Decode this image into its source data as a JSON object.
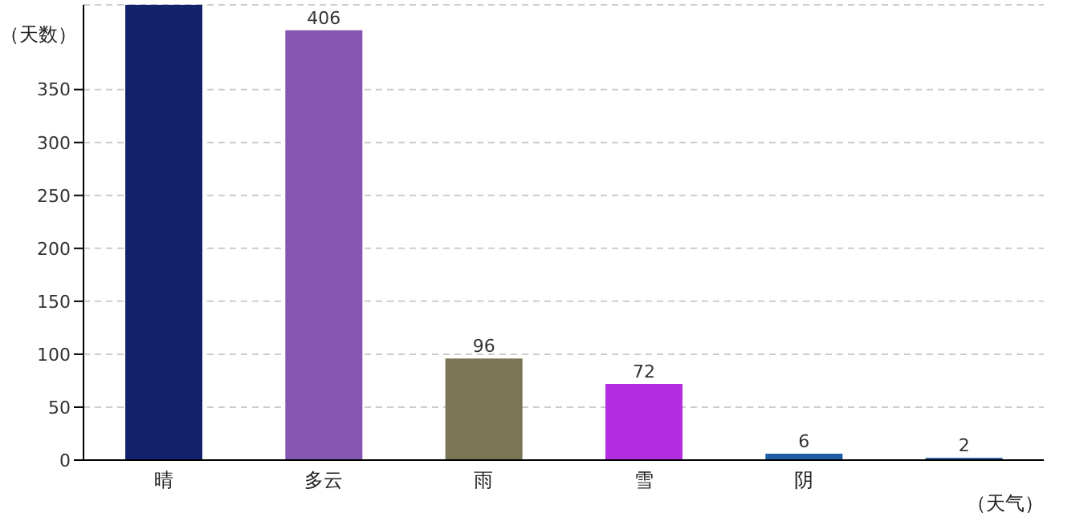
{
  "chart_data": {
    "type": "bar",
    "xlabel": "（天气）",
    "ylabel": "（天数）",
    "categories": [
      "晴",
      "多云",
      "雨",
      "雪",
      "阴",
      null
    ],
    "values": [
      430,
      406,
      96,
      72,
      6,
      2
    ],
    "colors": [
      "#14226e",
      "#8456b0",
      "#7b7455",
      "#b22ee0",
      "#1f5ca8",
      "#1f4c94"
    ],
    "value_labels": [
      null,
      "406",
      "96",
      "72",
      "6",
      "2"
    ],
    "ylim": [
      0,
      430
    ],
    "yticks": [
      0,
      50,
      100,
      150,
      200,
      250,
      300,
      350
    ],
    "grid": "y",
    "legend": false
  }
}
